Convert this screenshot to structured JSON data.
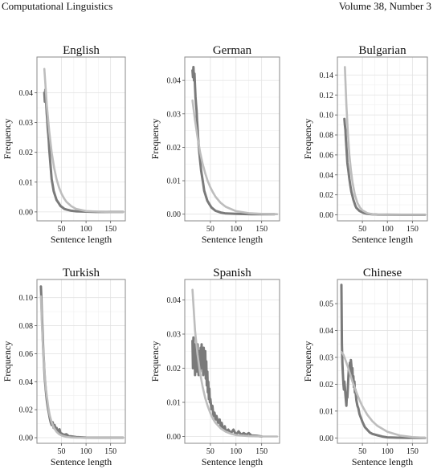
{
  "header": {
    "left": "Computational Linguistics",
    "right": "Volume 38, Number 3"
  },
  "chart_data": [
    {
      "type": "line",
      "title": "English",
      "xlabel": "Sentence length",
      "ylabel": "Frequency",
      "xlim": [
        0,
        180
      ],
      "ylim": [
        -0.003,
        0.052
      ],
      "xticks": [
        50,
        100,
        150
      ],
      "yticks": [
        0.0,
        0.01,
        0.02,
        0.03,
        0.04
      ],
      "ytick_labels": [
        "0.00",
        "0.01",
        "0.02",
        "0.03",
        "0.04"
      ],
      "grid": true,
      "series": [
        {
          "color": "#7a7a7a",
          "x": [
            15,
            16,
            17,
            18,
            19,
            20,
            21,
            22,
            23,
            24,
            25,
            26,
            27,
            28,
            29,
            30,
            32,
            34,
            36,
            38,
            40,
            44,
            48,
            52,
            56,
            60,
            70,
            80,
            100,
            120,
            150,
            175
          ],
          "y": [
            0.04,
            0.037,
            0.041,
            0.038,
            0.036,
            0.033,
            0.031,
            0.028,
            0.026,
            0.024,
            0.021,
            0.019,
            0.017,
            0.015,
            0.013,
            0.011,
            0.009,
            0.007,
            0.006,
            0.005,
            0.004,
            0.003,
            0.002,
            0.0015,
            0.001,
            0.0008,
            0.0004,
            0.0002,
            0.0001,
            0,
            0,
            0
          ]
        },
        {
          "color": "#bdbdbd",
          "x": [
            15,
            20,
            25,
            30,
            35,
            40,
            45,
            50,
            55,
            60,
            70,
            80,
            100,
            125,
            150,
            175
          ],
          "y": [
            0.048,
            0.036,
            0.027,
            0.02,
            0.0148,
            0.011,
            0.0082,
            0.0061,
            0.0046,
            0.0034,
            0.0019,
            0.001,
            0.0003,
            0.0001,
            0,
            0
          ]
        }
      ]
    },
    {
      "type": "line",
      "title": "German",
      "xlabel": "Sentence length",
      "ylabel": "Frequency",
      "xlim": [
        0,
        185
      ],
      "ylim": [
        -0.002,
        0.047
      ],
      "xticks": [
        50,
        100,
        150
      ],
      "yticks": [
        0.0,
        0.01,
        0.02,
        0.03,
        0.04
      ],
      "ytick_labels": [
        "0.00",
        "0.01",
        "0.02",
        "0.03",
        "0.04"
      ],
      "grid": true,
      "series": [
        {
          "color": "#7a7a7a",
          "x": [
            15,
            16,
            17,
            18,
            19,
            20,
            21,
            22,
            23,
            24,
            25,
            26,
            27,
            28,
            30,
            32,
            34,
            36,
            38,
            40,
            44,
            48,
            52,
            56,
            60,
            70,
            80,
            100,
            130,
            175
          ],
          "y": [
            0.043,
            0.041,
            0.044,
            0.04,
            0.042,
            0.038,
            0.035,
            0.033,
            0.031,
            0.028,
            0.026,
            0.023,
            0.021,
            0.019,
            0.016,
            0.013,
            0.011,
            0.009,
            0.007,
            0.006,
            0.004,
            0.003,
            0.002,
            0.0015,
            0.001,
            0.0005,
            0.0002,
            0.0001,
            0,
            0
          ]
        },
        {
          "color": "#bdbdbd",
          "x": [
            15,
            20,
            25,
            30,
            35,
            40,
            45,
            50,
            55,
            60,
            70,
            80,
            100,
            125,
            150,
            180
          ],
          "y": [
            0.034,
            0.028,
            0.023,
            0.0185,
            0.015,
            0.0122,
            0.0098,
            0.008,
            0.0065,
            0.0052,
            0.0034,
            0.0022,
            0.0009,
            0.0003,
            0.0001,
            0
          ]
        }
      ]
    },
    {
      "type": "line",
      "title": "Bulgarian",
      "xlabel": "Sentence length",
      "ylabel": "Frequency",
      "xlim": [
        0,
        180
      ],
      "ylim": [
        -0.006,
        0.158
      ],
      "xticks": [
        50,
        100,
        150
      ],
      "yticks": [
        0.0,
        0.02,
        0.04,
        0.06,
        0.08,
        0.1,
        0.12,
        0.14
      ],
      "ytick_labels": [
        "0.00",
        "0.02",
        "0.04",
        "0.06",
        "0.08",
        "0.10",
        "0.12",
        "0.14"
      ],
      "grid": true,
      "series": [
        {
          "color": "#7a7a7a",
          "x": [
            14,
            15,
            16,
            17,
            18,
            19,
            20,
            22,
            24,
            26,
            28,
            30,
            32,
            34,
            36,
            38,
            40,
            44,
            48,
            52,
            60,
            70,
            80,
            100,
            130,
            175
          ],
          "y": [
            0.096,
            0.09,
            0.085,
            0.075,
            0.068,
            0.06,
            0.052,
            0.044,
            0.036,
            0.029,
            0.023,
            0.019,
            0.015,
            0.012,
            0.009,
            0.007,
            0.006,
            0.004,
            0.003,
            0.002,
            0.001,
            0.0005,
            0.0002,
            0.0001,
            0,
            0
          ]
        },
        {
          "color": "#bdbdbd",
          "x": [
            15,
            18,
            21,
            24,
            27,
            30,
            35,
            40,
            45,
            50,
            60,
            70,
            80,
            100,
            130,
            175
          ],
          "y": [
            0.148,
            0.11,
            0.081,
            0.06,
            0.045,
            0.033,
            0.02,
            0.012,
            0.0074,
            0.0045,
            0.0017,
            0.0006,
            0.0002,
            0,
            0,
            0
          ]
        }
      ]
    },
    {
      "type": "line",
      "title": "Turkish",
      "xlabel": "Sentence length",
      "ylabel": "Frequency",
      "xlim": [
        0,
        180
      ],
      "ylim": [
        -0.004,
        0.113
      ],
      "xticks": [
        50,
        100,
        150
      ],
      "yticks": [
        0.0,
        0.02,
        0.04,
        0.06,
        0.08,
        0.1
      ],
      "ytick_labels": [
        "0.00",
        "0.02",
        "0.04",
        "0.06",
        "0.08",
        "0.10"
      ],
      "grid": true,
      "series": [
        {
          "color": "#7a7a7a",
          "x": [
            8,
            9,
            10,
            11,
            12,
            13,
            14,
            15,
            16,
            18,
            20,
            22,
            24,
            26,
            28,
            30,
            32,
            34,
            36,
            38,
            40,
            42,
            44,
            46,
            48,
            50,
            55,
            60,
            65,
            70,
            80,
            100,
            130,
            175
          ],
          "y": [
            0.108,
            0.1,
            0.088,
            0.08,
            0.071,
            0.062,
            0.055,
            0.048,
            0.042,
            0.034,
            0.027,
            0.022,
            0.018,
            0.014,
            0.011,
            0.009,
            0.011,
            0.007,
            0.009,
            0.006,
            0.007,
            0.005,
            0.004,
            0.006,
            0.003,
            0.003,
            0.002,
            0.0025,
            0.001,
            0.001,
            0.0005,
            0.0001,
            0,
            0
          ]
        },
        {
          "color": "#bdbdbd",
          "x": [
            8,
            10,
            12,
            14,
            16,
            18,
            20,
            23,
            26,
            30,
            35,
            40,
            45,
            50,
            60,
            70,
            80,
            100,
            130,
            175
          ],
          "y": [
            0.101,
            0.082,
            0.067,
            0.055,
            0.045,
            0.036,
            0.03,
            0.022,
            0.016,
            0.011,
            0.0068,
            0.0042,
            0.0026,
            0.0016,
            0.0006,
            0.0002,
            0.0001,
            0,
            0,
            0
          ]
        }
      ]
    },
    {
      "type": "line",
      "title": "Spanish",
      "xlabel": "Sentence length",
      "ylabel": "Frequency",
      "xlim": [
        0,
        185
      ],
      "ylim": [
        -0.002,
        0.046
      ],
      "xticks": [
        50,
        100,
        150
      ],
      "yticks": [
        0.0,
        0.01,
        0.02,
        0.03,
        0.04
      ],
      "ytick_labels": [
        "0.00",
        "0.01",
        "0.02",
        "0.03",
        "0.04"
      ],
      "grid": true,
      "series": [
        {
          "color": "#7a7a7a",
          "x": [
            15,
            16,
            17,
            18,
            19,
            20,
            21,
            22,
            23,
            24,
            25,
            26,
            27,
            28,
            29,
            30,
            31,
            32,
            33,
            34,
            35,
            36,
            37,
            38,
            39,
            40,
            41,
            42,
            43,
            44,
            45,
            46,
            47,
            48,
            49,
            50,
            52,
            54,
            56,
            58,
            60,
            62,
            65,
            68,
            70,
            72,
            75,
            78,
            80,
            85,
            90,
            95,
            100,
            105,
            110,
            115,
            120,
            125,
            130,
            140,
            150
          ],
          "y": [
            0.028,
            0.02,
            0.029,
            0.022,
            0.027,
            0.018,
            0.026,
            0.021,
            0.024,
            0.019,
            0.027,
            0.022,
            0.018,
            0.025,
            0.021,
            0.019,
            0.026,
            0.022,
            0.027,
            0.02,
            0.024,
            0.018,
            0.026,
            0.021,
            0.019,
            0.025,
            0.017,
            0.022,
            0.015,
            0.019,
            0.013,
            0.016,
            0.011,
            0.014,
            0.01,
            0.011,
            0.008,
            0.009,
            0.006,
            0.007,
            0.005,
            0.006,
            0.004,
            0.005,
            0.003,
            0.004,
            0.002,
            0.003,
            0.0015,
            0.002,
            0.001,
            0.002,
            0.0005,
            0.0015,
            0.0005,
            0.001,
            0.0005,
            0.001,
            0.0003,
            0.0002,
            0
          ]
        },
        {
          "color": "#bdbdbd",
          "x": [
            15,
            20,
            25,
            30,
            35,
            40,
            45,
            50,
            55,
            60,
            70,
            80,
            90,
            100,
            125,
            150,
            180
          ],
          "y": [
            0.043,
            0.031,
            0.024,
            0.0185,
            0.0145,
            0.0112,
            0.0088,
            0.0068,
            0.0052,
            0.004,
            0.0024,
            0.0014,
            0.0008,
            0.0004,
            0.0001,
            0,
            0
          ]
        }
      ]
    },
    {
      "type": "line",
      "title": "Chinese",
      "xlabel": "Sentence length",
      "ylabel": "Frequency",
      "xlim": [
        0,
        180
      ],
      "ylim": [
        -0.002,
        0.059
      ],
      "xticks": [
        50,
        100,
        150
      ],
      "yticks": [
        0.0,
        0.01,
        0.02,
        0.03,
        0.04,
        0.05
      ],
      "ytick_labels": [
        "0.00",
        "0.01",
        "0.02",
        "0.03",
        "0.04",
        "0.05"
      ],
      "grid": true,
      "series": [
        {
          "color": "#7a7a7a",
          "x": [
            8,
            9,
            10,
            11,
            12,
            13,
            14,
            15,
            16,
            17,
            18,
            19,
            20,
            21,
            22,
            23,
            24,
            25,
            26,
            27,
            28,
            29,
            30,
            31,
            32,
            33,
            34,
            35,
            36,
            38,
            40,
            42,
            44,
            46,
            48,
            50,
            55,
            60,
            65,
            70,
            80,
            90,
            100,
            120,
            150,
            175
          ],
          "y": [
            0.057,
            0.035,
            0.028,
            0.024,
            0.02,
            0.018,
            0.021,
            0.019,
            0.016,
            0.014,
            0.012,
            0.016,
            0.015,
            0.019,
            0.023,
            0.026,
            0.024,
            0.028,
            0.025,
            0.029,
            0.027,
            0.024,
            0.026,
            0.021,
            0.023,
            0.019,
            0.021,
            0.017,
            0.018,
            0.014,
            0.012,
            0.011,
            0.009,
            0.008,
            0.007,
            0.006,
            0.004,
            0.003,
            0.002,
            0.0015,
            0.001,
            0.0005,
            0.0002,
            0.0001,
            0,
            0
          ]
        },
        {
          "color": "#bdbdbd",
          "x": [
            8,
            12,
            16,
            20,
            25,
            30,
            35,
            40,
            45,
            50,
            60,
            70,
            80,
            100,
            125,
            150,
            175
          ],
          "y": [
            0.032,
            0.031,
            0.029,
            0.027,
            0.024,
            0.021,
            0.0185,
            0.016,
            0.0138,
            0.0118,
            0.0086,
            0.0062,
            0.0045,
            0.0023,
            0.0009,
            0.0003,
            0.0001
          ]
        }
      ]
    }
  ]
}
